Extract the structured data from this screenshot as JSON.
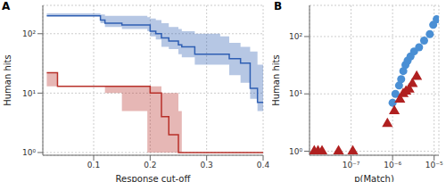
{
  "chart_data": [
    {
      "type": "line",
      "title": "A",
      "x_label": "Response cut-off",
      "y_label": "Human hits",
      "log": "y",
      "grid": true,
      "xlim": [
        0.01,
        0.4
      ],
      "xticks": [
        0.1,
        0.2,
        0.3,
        0.4
      ],
      "ylim": [
        0.9,
        300
      ],
      "yticks": [
        {
          "value": 1,
          "label": "10⁰"
        },
        {
          "value": 10,
          "label": "10¹"
        },
        {
          "value": 100,
          "label": "10²"
        }
      ],
      "x": [
        0.017,
        0.036,
        0.112,
        0.12,
        0.15,
        0.195,
        0.2,
        0.21,
        0.22,
        0.233,
        0.25,
        0.256,
        0.279,
        0.324,
        0.34,
        0.36,
        0.377,
        0.39,
        0.4
      ],
      "series": [
        {
          "color": "#2f5fb3",
          "line_style": "step",
          "values": [
            200,
            200,
            170,
            150,
            140,
            140,
            110,
            100,
            85,
            75,
            65,
            60,
            45,
            45,
            38,
            32,
            12,
            7,
            7
          ],
          "lower": [
            200,
            200,
            150,
            130,
            120,
            110,
            90,
            80,
            60,
            55,
            45,
            40,
            30,
            30,
            20,
            15,
            8,
            5,
            5
          ],
          "upper": [
            220,
            220,
            210,
            200,
            200,
            190,
            180,
            170,
            150,
            130,
            120,
            110,
            100,
            90,
            70,
            60,
            50,
            30,
            30
          ]
        },
        {
          "color": "#b8312a",
          "line_style": "step",
          "values": [
            22,
            13,
            13,
            13,
            13,
            13,
            10,
            10,
            4,
            2,
            1,
            1,
            1,
            1,
            1,
            1,
            1,
            1,
            1
          ],
          "lower": [
            13,
            13,
            13,
            10,
            5,
            1,
            1,
            1,
            1,
            1,
            1,
            1,
            1,
            1,
            1,
            1,
            1,
            1,
            1
          ],
          "upper": [
            22,
            13,
            13,
            13,
            13,
            13,
            13,
            13,
            10,
            10,
            5,
            1,
            1,
            1,
            1,
            1,
            1,
            1,
            1
          ]
        }
      ]
    },
    {
      "type": "scatter",
      "title": "B",
      "x_label": "p(Match)",
      "y_label": "Human hits",
      "log": true,
      "grid": true,
      "xlim": [
        1e-08,
        1.3e-05
      ],
      "xticks": [
        {
          "value": 1e-07,
          "label": "10⁻⁷"
        },
        {
          "value": 1e-06,
          "label": "10⁻⁶"
        },
        {
          "value": 1e-05,
          "label": "10⁻⁵"
        }
      ],
      "ylim": [
        0.85,
        350
      ],
      "yticks": [
        {
          "value": 1,
          "label": "10⁰"
        },
        {
          "value": 10,
          "label": "10¹"
        },
        {
          "value": 100,
          "label": "10²"
        }
      ],
      "series": [
        {
          "color": "#4a8fd4",
          "marker": "circle",
          "x": [
            1e-06,
            1.17e-06,
            1.43e-06,
            1.61e-06,
            1.81e-06,
            2.04e-06,
            2.3e-06,
            2.7e-06,
            3.29e-06,
            4.34e-06,
            5.74e-06,
            7.87e-06,
            9.5e-06,
            1.15e-05
          ],
          "values": [
            7,
            10,
            14,
            18,
            25,
            32,
            38,
            45,
            55,
            65,
            85,
            110,
            160,
            200
          ]
        },
        {
          "color": "#b02020",
          "marker": "triangle",
          "x": [
            1.3e-08,
            1.6e-08,
            2e-08,
            5e-08,
            1.1e-07,
            7.5e-07,
            1.1e-06,
            1.5e-06,
            1.8e-06,
            2.1e-06,
            2.5e-06,
            3e-06,
            3.8e-06
          ],
          "values": [
            1,
            1,
            1,
            1,
            1,
            3,
            5,
            8,
            10,
            11,
            12,
            15,
            20
          ]
        }
      ]
    }
  ]
}
